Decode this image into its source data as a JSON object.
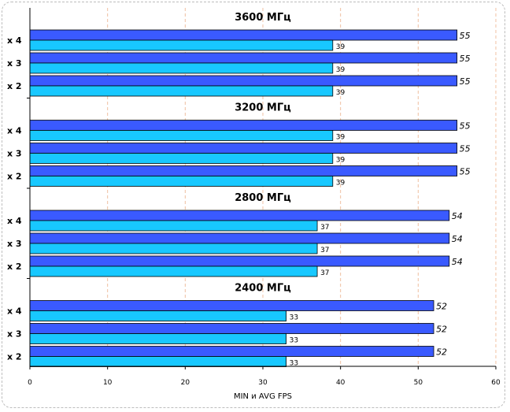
{
  "chart_data": {
    "type": "bar",
    "orientation": "horizontal",
    "xlabel": "MIN и AVG FPS",
    "xlim": [
      0,
      60
    ],
    "xticks": [
      0,
      10,
      20,
      30,
      40,
      50,
      60
    ],
    "grid": "vertical dashed",
    "colors": {
      "avg": "#3a5aff",
      "min": "#18c8ff",
      "grid": "#f0c0a0",
      "axis": "#000000"
    },
    "groups": [
      {
        "title": "3600 МГц",
        "bars": [
          {
            "label": "x 4",
            "max": 55,
            "min": 39
          },
          {
            "label": "x 3",
            "max": 55,
            "min": 39
          },
          {
            "label": "x 2",
            "max": 55,
            "min": 39
          }
        ]
      },
      {
        "title": "3200 МГц",
        "bars": [
          {
            "label": "x 4",
            "max": 55,
            "min": 39
          },
          {
            "label": "x 3",
            "max": 55,
            "min": 39
          },
          {
            "label": "x 2",
            "max": 55,
            "min": 39
          }
        ]
      },
      {
        "title": "2800 МГц",
        "bars": [
          {
            "label": "x 4",
            "max": 54,
            "min": 37
          },
          {
            "label": "x 3",
            "max": 54,
            "min": 37
          },
          {
            "label": "x 2",
            "max": 54,
            "min": 37
          }
        ]
      },
      {
        "title": "2400 МГц",
        "bars": [
          {
            "label": "x 4",
            "max": 52,
            "min": 33
          },
          {
            "label": "x 3",
            "max": 52,
            "min": 33
          },
          {
            "label": "x 2",
            "max": 52,
            "min": 33
          }
        ]
      }
    ]
  }
}
